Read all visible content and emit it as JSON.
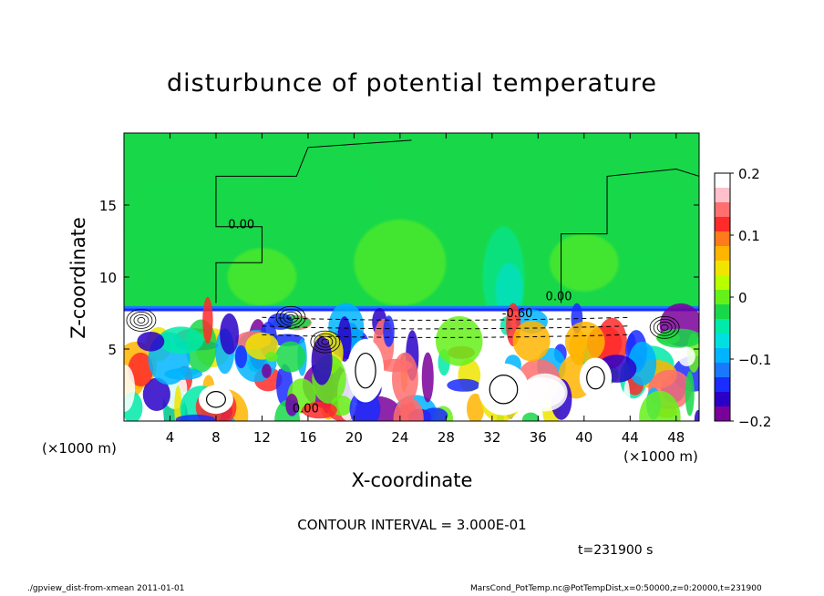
{
  "chart_data": {
    "type": "heatmap",
    "title": "disturbunce of potential temperature",
    "xlabel": "X-coordinate",
    "ylabel": "Z-coordinate",
    "x_unit_left": "(×1000 m)",
    "x_unit_right": "(×1000 m)",
    "xlim": [
      0,
      50
    ],
    "ylim": [
      0,
      20
    ],
    "x_ticks": [
      4,
      8,
      12,
      16,
      20,
      24,
      28,
      32,
      36,
      40,
      44,
      48
    ],
    "y_ticks": [
      5,
      10,
      15
    ],
    "colorbar": {
      "range": [
        -0.2,
        0.2
      ],
      "ticks": [
        {
          "value": 0.2,
          "label": "0.2"
        },
        {
          "value": 0.1,
          "label": "0.1"
        },
        {
          "value": 0,
          "label": "0"
        },
        {
          "value": -0.1,
          "label": "−0.1"
        },
        {
          "value": -0.2,
          "label": "−0.2"
        }
      ],
      "colors": [
        "#ffffff",
        "#ffc0cb",
        "#ff6f6f",
        "#ff2a2a",
        "#ff7a1a",
        "#ffb400",
        "#f0e500",
        "#b8ff00",
        "#66f01a",
        "#18d84a",
        "#00eaa8",
        "#00e0e0",
        "#00b4ff",
        "#1a78ff",
        "#1a2cff",
        "#2a00c8",
        "#7a009a"
      ]
    },
    "contour_labels": [
      {
        "x": 10.2,
        "z": 13.4,
        "label": "0.00"
      },
      {
        "x": 37.8,
        "z": 8.4,
        "label": "0.00"
      },
      {
        "x": 34.2,
        "z": 7.2,
        "label": "-0.60"
      },
      {
        "x": 15.8,
        "z": 0.6,
        "label": "0.00"
      }
    ],
    "contour_interval": "CONTOUR INTERVAL = 3.000E-01",
    "time": "t=231900 s",
    "regions": {
      "upper_band_value": -0.02,
      "mixed_layer_top_z": 8,
      "mixed_layer_value_range": [
        -0.2,
        0.2
      ]
    }
  },
  "footer": {
    "left": "./gpview_dist-from-xmean  2011-01-01",
    "right": "MarsCond_PotTemp.nc@PotTempDist,x=0:50000,z=0:20000,t=231900"
  }
}
